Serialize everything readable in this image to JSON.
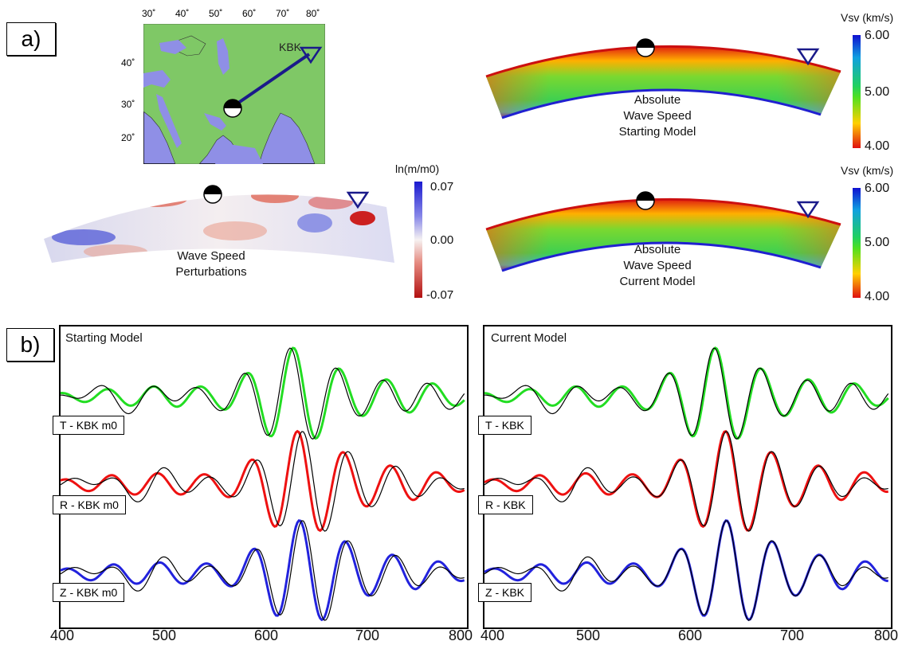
{
  "panel_a_label": "a)",
  "panel_b_label": "b)",
  "map": {
    "lon_ticks": [
      "30˚",
      "40˚",
      "50˚",
      "60˚",
      "70˚",
      "80˚"
    ],
    "lat_ticks": [
      "40˚",
      "30˚",
      "20˚"
    ],
    "station_label": "KBK",
    "land_color": "#7fc866",
    "water_color": "#8f8fe6",
    "path_color": "#1a1a8a"
  },
  "perturbation": {
    "caption_line1": "Wave Speed",
    "caption_line2": "Perturbations",
    "colorbar_title": "ln(m/m0)",
    "ticks": [
      "0.07",
      "0.00",
      "-0.07"
    ]
  },
  "starting_model_section": {
    "caption_line1": "Absolute",
    "caption_line2": "Wave Speed",
    "caption_line3": "Starting Model",
    "colorbar_title": "Vsv (km/s)",
    "ticks": [
      "6.00",
      "5.00",
      "4.00"
    ]
  },
  "current_model_section": {
    "caption_line1": "Absolute",
    "caption_line2": "Wave Speed",
    "caption_line3": "Current Model",
    "colorbar_title": "Vsv (km/s)",
    "ticks": [
      "6.00",
      "5.00",
      "4.00"
    ]
  },
  "chart_data": [
    {
      "type": "line",
      "title": "Starting Model",
      "x_ticks": [
        "400",
        "500",
        "600",
        "700",
        "800"
      ],
      "xlim": [
        400,
        800
      ],
      "series": [
        {
          "name": "T - KBK m0",
          "color": "#22dd22",
          "component": "T",
          "model": "starting"
        },
        {
          "name": "R - KBK m0",
          "color": "#ee1111",
          "component": "R",
          "model": "starting"
        },
        {
          "name": "Z - KBK m0",
          "color": "#2222dd",
          "component": "Z",
          "model": "starting"
        }
      ]
    },
    {
      "type": "line",
      "title": "Current Model",
      "x_ticks": [
        "400",
        "500",
        "600",
        "700",
        "800"
      ],
      "xlim": [
        400,
        800
      ],
      "series": [
        {
          "name": "T - KBK",
          "color": "#22dd22",
          "component": "T",
          "model": "current"
        },
        {
          "name": "R - KBK",
          "color": "#ee1111",
          "component": "R",
          "model": "current"
        },
        {
          "name": "Z - KBK",
          "color": "#2222dd",
          "component": "Z",
          "model": "current"
        }
      ]
    }
  ]
}
